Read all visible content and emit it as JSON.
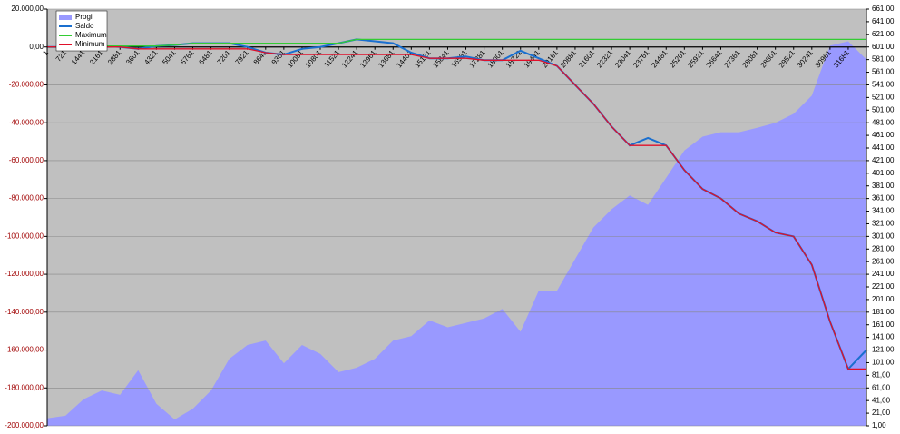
{
  "chart_data": {
    "type": "combo",
    "x": [
      1,
      721,
      1441,
      2161,
      2881,
      3601,
      4321,
      5041,
      5761,
      6481,
      7201,
      7921,
      8641,
      9361,
      10081,
      10801,
      11521,
      12241,
      12961,
      13681,
      14401,
      15121,
      15841,
      16561,
      17281,
      18001,
      18721,
      19441,
      20161,
      20881,
      21601,
      22321,
      23041,
      23761,
      24481,
      25201,
      25921,
      26641,
      27361,
      28081,
      28801,
      29521,
      30241,
      30961,
      31681,
      32401
    ],
    "xlim": [
      1,
      32401
    ],
    "xticks": [
      1,
      721,
      1441,
      2161,
      2881,
      3601,
      4321,
      5041,
      5761,
      6481,
      7201,
      7921,
      8641,
      9361,
      10081,
      10801,
      11521,
      12241,
      12961,
      13681,
      14401,
      15121,
      15841,
      16561,
      17281,
      18001,
      18721,
      19441,
      20161,
      20881,
      21601,
      22321,
      23041,
      23761,
      24481,
      25201,
      25921,
      26641,
      27361,
      28081,
      28801,
      29521,
      30241,
      30961,
      31681
    ],
    "ylim": [
      -200000,
      20000
    ],
    "yticks": [
      {
        "value": -200000,
        "label": "-200.000,00"
      },
      {
        "value": -180000,
        "label": "-180.000,00"
      },
      {
        "value": -160000,
        "label": "-160.000,00"
      },
      {
        "value": -140000,
        "label": "-140.000,00"
      },
      {
        "value": -120000,
        "label": "-120.000,00"
      },
      {
        "value": -100000,
        "label": "-100.000,00"
      },
      {
        "value": -80000,
        "label": "-80.000,00"
      },
      {
        "value": -60000,
        "label": "-60.000,00"
      },
      {
        "value": -40000,
        "label": "-40.000,00"
      },
      {
        "value": -20000,
        "label": "-20.000,00"
      },
      {
        "value": 0,
        "label": "0,00"
      },
      {
        "value": 20000,
        "label": "20.000,00"
      }
    ],
    "y2lim": [
      1,
      661
    ],
    "y2ticks": [
      {
        "value": 1,
        "label": "1,00"
      },
      {
        "value": 21,
        "label": "21,00"
      },
      {
        "value": 41,
        "label": "41,00"
      },
      {
        "value": 61,
        "label": "61,00"
      },
      {
        "value": 81,
        "label": "81,00"
      },
      {
        "value": 101,
        "label": "101,00"
      },
      {
        "value": 121,
        "label": "121,00"
      },
      {
        "value": 141,
        "label": "141,00"
      },
      {
        "value": 161,
        "label": "161,00"
      },
      {
        "value": 181,
        "label": "181,00"
      },
      {
        "value": 201,
        "label": "201,00"
      },
      {
        "value": 221,
        "label": "221,00"
      },
      {
        "value": 241,
        "label": "241,00"
      },
      {
        "value": 261,
        "label": "261,00"
      },
      {
        "value": 281,
        "label": "281,00"
      },
      {
        "value": 301,
        "label": "301,00"
      },
      {
        "value": 321,
        "label": "321,00"
      },
      {
        "value": 341,
        "label": "341,00"
      },
      {
        "value": 361,
        "label": "361,00"
      },
      {
        "value": 381,
        "label": "381,00"
      },
      {
        "value": 401,
        "label": "401,00"
      },
      {
        "value": 421,
        "label": "421,00"
      },
      {
        "value": 441,
        "label": "441,00"
      },
      {
        "value": 461,
        "label": "461,00"
      },
      {
        "value": 481,
        "label": "481,00"
      },
      {
        "value": 501,
        "label": "501,00"
      },
      {
        "value": 521,
        "label": "521,00"
      },
      {
        "value": 541,
        "label": "541,00"
      },
      {
        "value": 561,
        "label": "561,00"
      },
      {
        "value": 581,
        "label": "581,00"
      },
      {
        "value": 601,
        "label": "601,00"
      },
      {
        "value": 621,
        "label": "621,00"
      },
      {
        "value": 641,
        "label": "641,00"
      },
      {
        "value": 661,
        "label": "661,00"
      }
    ],
    "grid": true,
    "legend": "top-left",
    "series": [
      {
        "name": "Progi",
        "kind": "area",
        "axis": "y2",
        "color": "#9999ff",
        "values": [
          13,
          17,
          43,
          57,
          50,
          89,
          36,
          11,
          28,
          57,
          107,
          129,
          136,
          100,
          129,
          115,
          86,
          93,
          107,
          136,
          143,
          168,
          157,
          164,
          171,
          186,
          150,
          215,
          215,
          265,
          315,
          344,
          366,
          351,
          394,
          437,
          459,
          466,
          466,
          473,
          481,
          495,
          524,
          603,
          610,
          581
        ]
      },
      {
        "name": "Saldo",
        "kind": "line",
        "color": "#1a6fcf",
        "values": [
          0,
          0,
          0,
          500,
          0,
          -1000,
          500,
          1000,
          2000,
          2000,
          2000,
          0,
          -3000,
          -4000,
          -1000,
          0,
          2000,
          4000,
          3000,
          2000,
          -3000,
          -6000,
          -6000,
          -5000,
          -7000,
          -7000,
          -2000,
          -6000,
          -10000,
          -20000,
          -30000,
          -42000,
          -52000,
          -48000,
          -52000,
          -65000,
          -75000,
          -80000,
          -88000,
          -92000,
          -98000,
          -100000,
          -115000,
          -145000,
          -170000,
          -160000
        ]
      },
      {
        "name": "Maximum",
        "kind": "line",
        "color": "#33cc33",
        "values": [
          0,
          0,
          0,
          500,
          500,
          500,
          500,
          1000,
          2000,
          2000,
          2000,
          2000,
          2000,
          2000,
          2000,
          2000,
          2000,
          4000,
          4000,
          4000,
          4000,
          4000,
          4000,
          4000,
          4000,
          4000,
          4000,
          4000,
          4000,
          4000,
          4000,
          4000,
          4000,
          4000,
          4000,
          4000,
          4000,
          4000,
          4000,
          4000,
          4000,
          4000,
          4000,
          4000,
          4000,
          4000
        ]
      },
      {
        "name": "Minimum",
        "kind": "line",
        "color": "#e0102a",
        "values": [
          0,
          0,
          0,
          0,
          0,
          -1000,
          -1000,
          -1000,
          -1000,
          -1000,
          -1000,
          -1000,
          -3000,
          -4000,
          -4000,
          -4000,
          -4000,
          -4000,
          -4000,
          -4000,
          -4000,
          -6000,
          -6000,
          -6000,
          -7000,
          -7000,
          -7000,
          -7000,
          -10000,
          -20000,
          -30000,
          -42000,
          -52000,
          -52000,
          -52000,
          -65000,
          -75000,
          -80000,
          -88000,
          -92000,
          -98000,
          -100000,
          -115000,
          -145000,
          -170000,
          -170000
        ]
      }
    ]
  }
}
